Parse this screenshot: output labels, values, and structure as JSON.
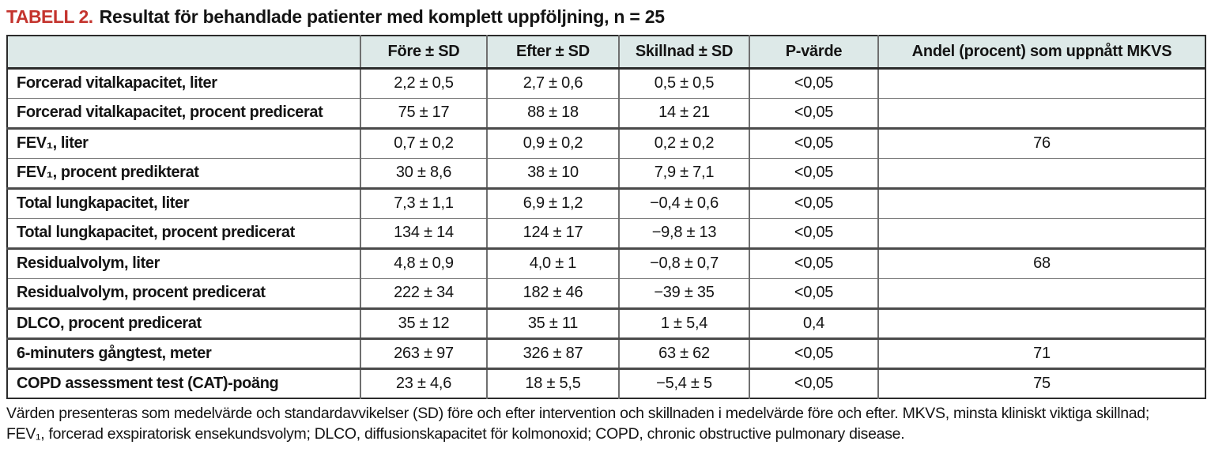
{
  "title": {
    "label": "TABELL 2.",
    "text": "Resultat för behandlade patienter med komplett uppföljning, n = 25"
  },
  "table": {
    "columns": [
      "",
      "Före ± SD",
      "Efter ± SD",
      "Skillnad ± SD",
      "P-värde",
      "Andel (procent) som uppnått MKVS"
    ],
    "rows": [
      {
        "label": "Forcerad vitalkapacitet, liter",
        "fore": "2,2 ± 0,5",
        "efter": "2,7 ± 0,6",
        "skillnad": "0,5 ± 0,5",
        "p_varde": "<0,05",
        "andel": ""
      },
      {
        "label": "Forcerad vitalkapacitet, procent predicerat",
        "fore": "75 ± 17",
        "efter": "88 ± 18",
        "skillnad": "14 ± 21",
        "p_varde": "<0,05",
        "andel": ""
      },
      {
        "label": "FEV₁, liter",
        "fore": "0,7 ± 0,2",
        "efter": "0,9 ± 0,2",
        "skillnad": "0,2 ± 0,2",
        "p_varde": "<0,05",
        "andel": "76"
      },
      {
        "label": "FEV₁, procent predikterat",
        "fore": "30 ± 8,6",
        "efter": "38 ± 10",
        "skillnad": "7,9 ± 7,1",
        "p_varde": "<0,05",
        "andel": ""
      },
      {
        "label": "Total lungkapacitet, liter",
        "fore": "7,3 ± 1,1",
        "efter": "6,9 ± 1,2",
        "skillnad": "−0,4 ± 0,6",
        "p_varde": "<0,05",
        "andel": ""
      },
      {
        "label": "Total lungkapacitet, procent predicerat",
        "fore": "134 ± 14",
        "efter": "124 ± 17",
        "skillnad": "−9,8 ± 13",
        "p_varde": "<0,05",
        "andel": ""
      },
      {
        "label": "Residualvolym, liter",
        "fore": "4,8 ± 0,9",
        "efter": "4,0 ± 1",
        "skillnad": "−0,8 ± 0,7",
        "p_varde": "<0,05",
        "andel": "68"
      },
      {
        "label": "Residualvolym, procent predicerat",
        "fore": "222 ± 34",
        "efter": "182 ± 46",
        "skillnad": "−39 ± 35",
        "p_varde": "<0,05",
        "andel": ""
      },
      {
        "label": "DLCO, procent predicerat",
        "fore": "35 ± 12",
        "efter": "35 ± 11",
        "skillnad": "1 ± 5,4",
        "p_varde": "0,4",
        "andel": ""
      },
      {
        "label": "6-minuters gångtest, meter",
        "fore": "263 ± 97",
        "efter": "326 ± 87",
        "skillnad": "63 ± 62",
        "p_varde": "<0,05",
        "andel": "71"
      },
      {
        "label": "COPD assessment test (CAT)-poäng",
        "fore": "23 ± 4,6",
        "efter": "18 ± 5,5",
        "skillnad": "−5,4 ± 5",
        "p_varde": "<0,05",
        "andel": "75"
      }
    ]
  },
  "footnote": {
    "line1": "Värden presenteras som medelvärde och standardavvikelser (SD) före och efter intervention och skillnaden i medelvärde före och efter. MKVS, minsta kliniskt viktiga skillnad;",
    "line2": "FEV₁, forcerad exspiratorisk ensekundsvolym; DLCO, diffusionskapacitet för kolmonoxid; COPD, chronic obstructive pulmonary disease."
  },
  "colors": {
    "accent_red": "#c4342e",
    "header_bg": "#dde9e8",
    "grid": "#6f6f6f",
    "frame": "#2b2b2b"
  }
}
